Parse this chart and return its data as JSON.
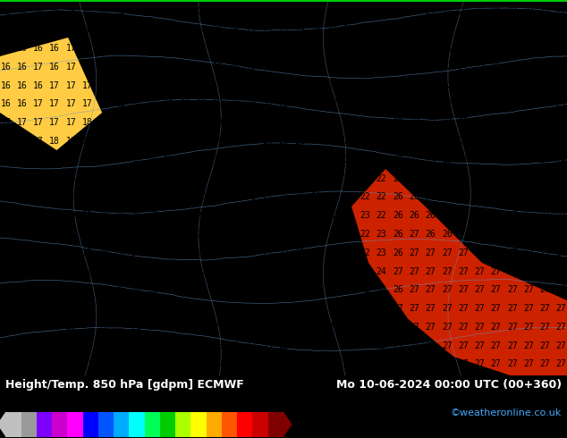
{
  "title_left": "Height/Temp. 850 hPa [gdpm] ECMWF",
  "title_right": "Mo 10-06-2024 00:00 UTC (00+360)",
  "credit": "©weatheronline.co.uk",
  "colorbar_levels": [
    -54,
    -48,
    -42,
    -36,
    -30,
    -24,
    -18,
    -12,
    -6,
    0,
    6,
    12,
    18,
    24,
    30,
    36,
    42,
    48,
    54
  ],
  "colorbar_colors": [
    "#c0c0c0",
    "#9a9a9a",
    "#7f00ff",
    "#cc00cc",
    "#ff00ff",
    "#0000ff",
    "#0055ff",
    "#00aaff",
    "#00ffff",
    "#00ff55",
    "#00cc00",
    "#aaff00",
    "#ffff00",
    "#ffaa00",
    "#ff5500",
    "#ff0000",
    "#cc0000",
    "#800000"
  ],
  "bg_color": "#ff9900",
  "map_color_right": "#cc2200",
  "top_bar_color": "#00cc00",
  "fig_width": 6.34,
  "fig_height": 4.9,
  "dpi": 100,
  "font_size_title": 9,
  "font_size_credit": 8,
  "font_size_numbers": 7,
  "contour_color": "#6699cc",
  "contour_lw": 0.5,
  "colorbar_label_fontsize": 6.5,
  "numbers_grid": {
    "rows": 20,
    "cols": 35,
    "val_min": 15,
    "val_max": 27
  }
}
